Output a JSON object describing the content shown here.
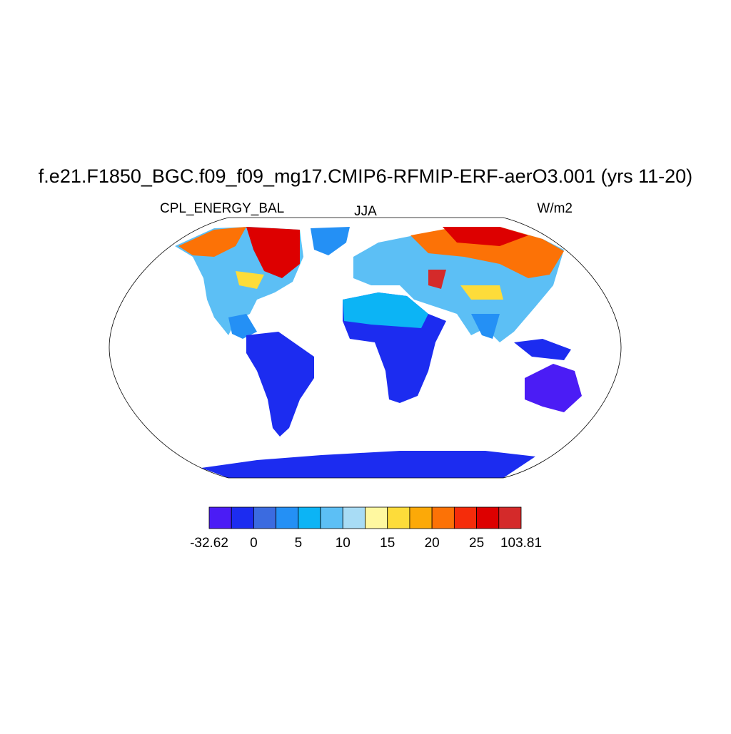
{
  "header": {
    "title": "f.e21.F1850_BGC.f09_f09_mg17.CMIP6-RFMIP-ERF-aerO3.001 (yrs 11-20)",
    "left_string": "CPL_ENERGY_BAL",
    "center_string": "JJA",
    "right_string": "W/m2"
  },
  "colorbar": {
    "colors": [
      "#4b1cf5",
      "#1c2cf0",
      "#3b6be0",
      "#2490f5",
      "#0cb4f5",
      "#5cbff5",
      "#a8dcf5",
      "#fff8a0",
      "#fddc3a",
      "#fca908",
      "#fc7206",
      "#f52c0a",
      "#dd0000",
      "#d42a2a"
    ],
    "levels": [
      -32.62,
      null,
      0,
      null,
      5,
      null,
      10,
      null,
      15,
      null,
      20,
      null,
      25,
      null,
      103.81
    ]
  }
}
